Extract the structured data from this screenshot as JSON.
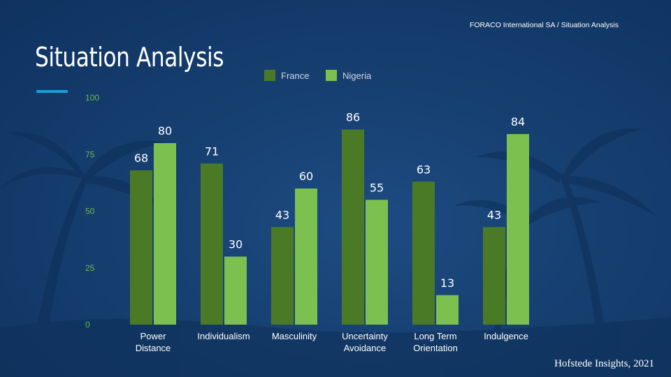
{
  "header": {
    "breadcrumb": "FORACO International SA / Situation Analysis",
    "title": "Situation Analysis"
  },
  "footer": {
    "source": "Hofstede Insights, 2021"
  },
  "colors": {
    "background": "#163f70",
    "accent": "#1e9be0",
    "france": "#4a7a26",
    "nigeria": "#7cc04f",
    "axis_tick": "#6db84a"
  },
  "chart_data": {
    "type": "bar",
    "title": "",
    "xlabel": "",
    "ylabel": "",
    "ylim": [
      0,
      100
    ],
    "yticks": [
      0,
      25,
      50,
      75,
      100
    ],
    "grid": false,
    "legend_position": "top",
    "categories": [
      [
        "Power",
        "Distance"
      ],
      [
        "Individualism"
      ],
      [
        "Masculinity"
      ],
      [
        "Uncertainty",
        "Avoidance"
      ],
      [
        "Long Term",
        "Orientation"
      ],
      [
        "Indulgence"
      ]
    ],
    "series": [
      {
        "name": "France",
        "values": [
          68,
          71,
          43,
          86,
          63,
          43
        ]
      },
      {
        "name": "Nigeria",
        "values": [
          80,
          30,
          60,
          55,
          13,
          84
        ]
      }
    ]
  }
}
